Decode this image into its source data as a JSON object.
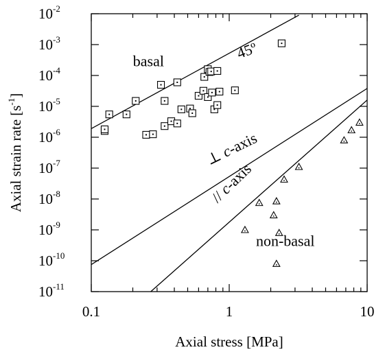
{
  "chart_data": {
    "type": "scatter",
    "title": "",
    "xlabel": "Axial stress [MPa]",
    "ylabel": "Axial strain rate [s",
    "ylabel_exp": "-1",
    "ylabel_suffix": "]",
    "x_scale": "log",
    "y_scale": "log",
    "xlim": [
      0.1,
      10
    ],
    "ylim": [
      1e-11,
      0.01
    ],
    "grid": false,
    "x_ticks": [
      {
        "value": 0.1,
        "label": "0.1"
      },
      {
        "value": 1,
        "label": "1"
      },
      {
        "value": 10,
        "label": "10"
      }
    ],
    "y_ticks": [
      {
        "value": 1e-11,
        "base": "10",
        "exp": "-11"
      },
      {
        "value": 1e-10,
        "base": "10",
        "exp": "-10"
      },
      {
        "value": 1e-09,
        "base": "10",
        "exp": "-9"
      },
      {
        "value": 1e-08,
        "base": "10",
        "exp": "-8"
      },
      {
        "value": 1e-07,
        "base": "10",
        "exp": "-7"
      },
      {
        "value": 1e-06,
        "base": "10",
        "exp": "-6"
      },
      {
        "value": 1e-05,
        "base": "10",
        "exp": "-5"
      },
      {
        "value": 0.0001,
        "base": "10",
        "exp": "-4"
      },
      {
        "value": 0.001,
        "base": "10",
        "exp": "-3"
      },
      {
        "value": 0.01,
        "base": "10",
        "exp": "-2"
      }
    ],
    "series": [
      {
        "name": "basal",
        "marker": "square",
        "points": [
          [
            0.125,
            1.6e-06
          ],
          [
            0.125,
            1.8e-06
          ],
          [
            0.135,
            5.5e-06
          ],
          [
            0.18,
            5.5e-06
          ],
          [
            0.21,
            1.5e-05
          ],
          [
            0.25,
            1.2e-06
          ],
          [
            0.28,
            1.25e-06
          ],
          [
            0.32,
            5e-05
          ],
          [
            0.34,
            1.5e-05
          ],
          [
            0.34,
            2.3e-06
          ],
          [
            0.38,
            3.3e-06
          ],
          [
            0.42,
            6e-05
          ],
          [
            0.42,
            2.8e-06
          ],
          [
            0.45,
            8e-06
          ],
          [
            0.52,
            8.5e-06
          ],
          [
            0.54,
            6e-06
          ],
          [
            0.6,
            2.2e-05
          ],
          [
            0.65,
            3.2e-05
          ],
          [
            0.66,
            9e-05
          ],
          [
            0.7,
            0.00016
          ],
          [
            0.7,
            2e-05
          ],
          [
            0.72,
            0.00013
          ],
          [
            0.74,
            0.000135
          ],
          [
            0.75,
            2.8e-05
          ],
          [
            0.78,
            8e-06
          ],
          [
            0.82,
            0.00014
          ],
          [
            0.82,
            1.1e-05
          ],
          [
            0.85,
            3e-05
          ],
          [
            1.1,
            3.3e-05
          ],
          [
            2.4,
            0.0011
          ]
        ]
      },
      {
        "name": "non-basal",
        "marker": "triangle",
        "points": [
          [
            1.3,
            1e-09
          ],
          [
            1.65,
            7.5e-09
          ],
          [
            2.1,
            3e-09
          ],
          [
            2.2,
            8.5e-09
          ],
          [
            2.3,
            8e-10
          ],
          [
            2.5,
            4.3e-08
          ],
          [
            2.2,
            8e-11
          ],
          [
            3.2,
            1.1e-07
          ],
          [
            6.8,
            8e-07
          ],
          [
            7.7,
            1.7e-06
          ],
          [
            8.8,
            3e-06
          ]
        ]
      }
    ],
    "lines": [
      {
        "x": [
          0.1,
          3.2
        ],
        "y": [
          1.9e-06,
          0.009
        ]
      },
      {
        "x": [
          0.1,
          10
        ],
        "y": [
          7.5e-11,
          3.8e-05
        ]
      },
      {
        "x": [
          0.27,
          10
        ],
        "y": [
          1e-11,
          1.6e-05
        ]
      }
    ],
    "annotations": [
      {
        "text": "basal",
        "x": 0.26,
        "y": 0.0002,
        "anchor": "middle",
        "rotate": 0
      },
      {
        "text": "45º",
        "x": 1.38,
        "y": 0.00045,
        "anchor": "middle",
        "rotate": -20
      },
      {
        "text": "⊥ ",
        "italic": "c",
        "suffix": "-axis",
        "x": 1.08,
        "y": 3e-07,
        "anchor": "middle",
        "rotate": -26
      },
      {
        "text": "// ",
        "italic": "c",
        "suffix": "-axis",
        "x": 1.1,
        "y": 2.5e-08,
        "anchor": "middle",
        "rotate": -44
      },
      {
        "text": "non-basal",
        "x": 2.55,
        "y": 3e-10,
        "anchor": "middle",
        "rotate": 0
      }
    ]
  }
}
